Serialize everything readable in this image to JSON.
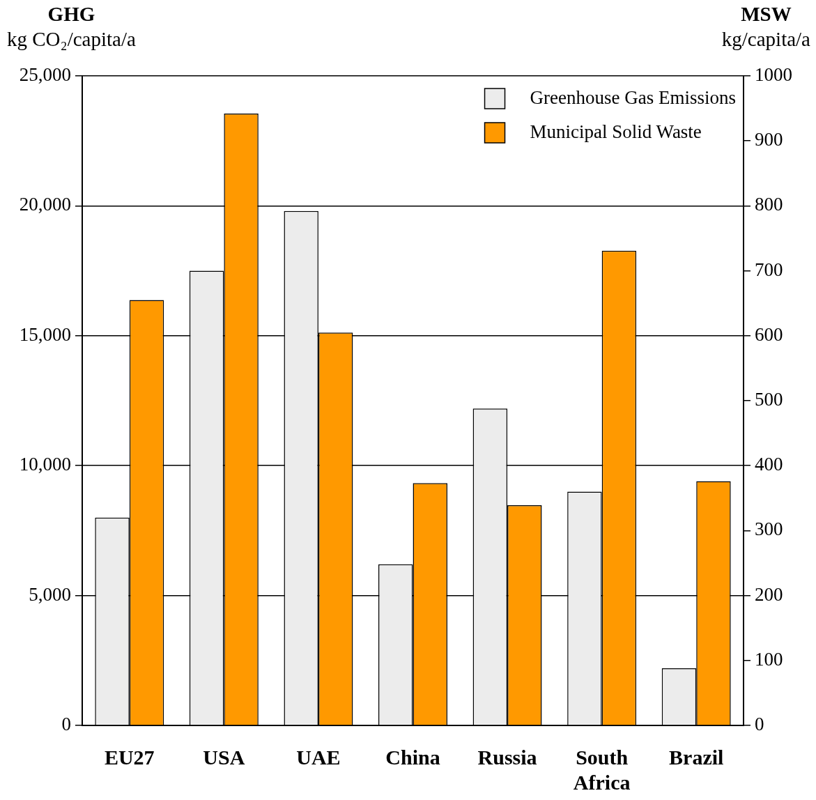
{
  "chart_data": {
    "type": "bar",
    "categories": [
      "EU27",
      "USA",
      "UAE",
      "China",
      "Russia",
      "South Africa",
      "Brazil"
    ],
    "series": [
      {
        "name": "Greenhouse Gas Emissions",
        "color": "#ececec",
        "values": [
          8000,
          17500,
          19800,
          6200,
          12200,
          9000,
          2200
        ]
      },
      {
        "name": "Municipal Solid Waste",
        "color": "#ff9900",
        "axis": "y2",
        "values": [
          655,
          942,
          605,
          373,
          339,
          731,
          376
        ]
      }
    ],
    "ylabel": "GHG\nkg CO₂/capita/a",
    "y2label": "MSW\nkg/capita/a",
    "ylim": [
      0,
      25000
    ],
    "yticks": [
      0,
      {
        "value": 5000,
        "label": "5,000"
      },
      {
        "value": 10000,
        "label": "10,000"
      },
      {
        "value": 15000,
        "label": "15,000"
      },
      {
        "value": 20000,
        "label": "20,000"
      },
      {
        "value": 25000,
        "label": "25,000"
      }
    ],
    "y2lim": [
      0,
      1000
    ],
    "y2ticks": [
      0,
      100,
      200,
      300,
      400,
      500,
      600,
      700,
      800,
      900,
      1000
    ],
    "grid": "y",
    "legend": "top right"
  }
}
